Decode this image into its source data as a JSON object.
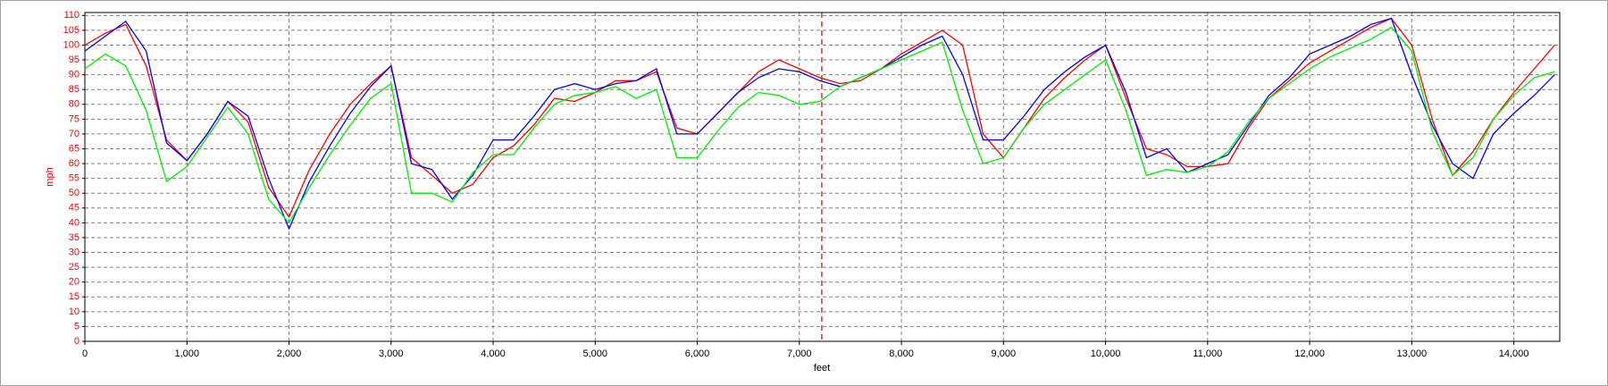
{
  "chart_data": {
    "type": "line",
    "x_label": "feet",
    "y_label": "mph",
    "x": [
      0,
      200,
      400,
      600,
      800,
      1000,
      1200,
      1400,
      1600,
      1800,
      2000,
      2200,
      2400,
      2600,
      2800,
      3000,
      3200,
      3400,
      3600,
      3800,
      4000,
      4200,
      4400,
      4600,
      4800,
      5000,
      5200,
      5400,
      5600,
      5800,
      6000,
      6200,
      6400,
      6600,
      6800,
      7000,
      7200,
      7400,
      7600,
      7800,
      8000,
      8200,
      8400,
      8600,
      8800,
      9000,
      9200,
      9400,
      9600,
      9800,
      10000,
      10200,
      10400,
      10600,
      10800,
      11000,
      11200,
      11400,
      11600,
      11800,
      12000,
      12200,
      12400,
      12600,
      12800,
      13000,
      13200,
      13400,
      13600,
      13800,
      14000,
      14200,
      14400
    ],
    "series": [
      {
        "color": "#ff0000",
        "values": [
          100,
          104,
          107,
          93,
          68,
          61,
          70,
          81,
          74,
          52,
          42,
          58,
          70,
          80,
          87,
          93,
          62,
          56,
          50,
          53,
          62,
          66,
          73,
          82,
          81,
          84,
          88,
          88,
          91,
          72,
          70,
          77,
          84,
          91,
          95,
          92,
          89,
          87,
          88,
          92,
          97,
          101,
          105,
          100,
          70,
          62,
          72,
          82,
          89,
          95,
          100,
          82,
          65,
          63,
          59,
          59,
          60,
          72,
          82,
          88,
          94,
          98,
          102,
          106,
          109,
          100,
          75,
          56,
          64,
          75,
          84,
          92,
          100
        ]
      },
      {
        "color": "#0000ff",
        "values": [
          98,
          103,
          108,
          98,
          67,
          61,
          70,
          81,
          76,
          55,
          38,
          54,
          66,
          77,
          86,
          93,
          60,
          58,
          48,
          56,
          68,
          68,
          76,
          85,
          87,
          85,
          87,
          88,
          92,
          70,
          70,
          77,
          84,
          89,
          92,
          91,
          88,
          86,
          89,
          92,
          96,
          100,
          103,
          90,
          68,
          68,
          76,
          85,
          91,
          96,
          100,
          84,
          62,
          65,
          57,
          60,
          63,
          73,
          83,
          89,
          97,
          100,
          103,
          107,
          109,
          90,
          73,
          60,
          55,
          70,
          77,
          83,
          90
        ]
      },
      {
        "color": "#00ee00",
        "values": [
          92,
          97,
          93,
          78,
          54,
          59,
          69,
          79,
          70,
          48,
          40,
          52,
          63,
          73,
          82,
          87,
          50,
          50,
          47,
          57,
          63,
          63,
          72,
          80,
          83,
          84,
          86,
          82,
          85,
          62,
          62,
          71,
          79,
          84,
          83,
          80,
          81,
          86,
          89,
          92,
          95,
          98,
          101,
          78,
          60,
          62,
          72,
          80,
          85,
          90,
          95,
          78,
          56,
          58,
          57,
          59,
          64,
          74,
          82,
          87,
          92,
          96,
          99,
          102,
          106,
          98,
          71,
          56,
          62,
          75,
          83,
          89,
          91
        ]
      }
    ],
    "xlim": [
      0,
      14450
    ],
    "ylim": [
      0,
      111
    ],
    "xticks": [
      0,
      {
        "value": 1000,
        "label": "1,000"
      },
      {
        "value": 2000,
        "label": "2,000"
      },
      {
        "value": 3000,
        "label": "3,000"
      },
      {
        "value": 4000,
        "label": "4,000"
      },
      {
        "value": 5000,
        "label": "5,000"
      },
      {
        "value": 6000,
        "label": "6,000"
      },
      {
        "value": 7000,
        "label": "7,000"
      },
      {
        "value": 8000,
        "label": "8,000"
      },
      {
        "value": 9000,
        "label": "9,000"
      },
      {
        "value": 10000,
        "label": "10,000"
      },
      {
        "value": 11000,
        "label": "11,000"
      },
      {
        "value": 12000,
        "label": "12,000"
      },
      {
        "value": 13000,
        "label": "13,000"
      },
      {
        "value": 14000,
        "label": "14,000"
      }
    ],
    "yticks": [
      0,
      5,
      10,
      15,
      20,
      25,
      30,
      35,
      40,
      45,
      50,
      55,
      60,
      65,
      70,
      75,
      80,
      85,
      90,
      95,
      100,
      105,
      110
    ],
    "grid": true,
    "ytick_color": "#ff0000",
    "cursor_x": 7220,
    "cursor_color": "#cc0000"
  }
}
